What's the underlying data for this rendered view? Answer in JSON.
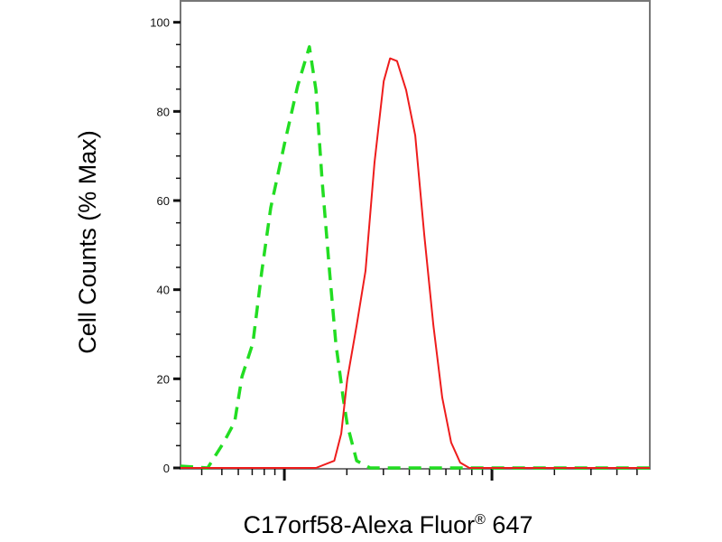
{
  "chart_data": {
    "type": "line",
    "title": "",
    "xlabel": "C17orf58-Alexa Fluor",
    "xlabel_superscript": "®",
    "xlabel_suffix": " 647",
    "ylabel": "Cell Counts (% Max)",
    "xscale": "log",
    "xlim": [
      31.6,
      5760
    ],
    "ylim": [
      0,
      105
    ],
    "yticks": [
      0,
      20,
      40,
      60,
      80,
      100
    ],
    "ytick_labels": [
      "0",
      "20",
      "40",
      "60",
      "80",
      "100"
    ],
    "x_major_ticks": [
      100,
      1000
    ],
    "grid": false,
    "series": [
      {
        "color": "#22dd22",
        "style": "dashed",
        "x": [
          31.6,
          42.7,
          51,
          57.6,
          62.5,
          70.5,
          77.8,
          86,
          100,
          116,
          132,
          142,
          152,
          165,
          177,
          192,
          201,
          223,
          259,
          5760
        ],
        "y": [
          0.4,
          0,
          5.7,
          10.3,
          20.5,
          28,
          44,
          58.4,
          72.6,
          85.8,
          94.5,
          84.8,
          64.5,
          44.2,
          28,
          15.8,
          9.7,
          1.6,
          0,
          0
        ]
      },
      {
        "color": "#ee1c1c",
        "style": "solid",
        "x": [
          31.6,
          142,
          174,
          188,
          201,
          223,
          246,
          272,
          301,
          323,
          349,
          386,
          427,
          472,
          522,
          576,
          636,
          703,
          778,
          5760
        ],
        "y": [
          0,
          0,
          1.6,
          7.7,
          19.9,
          32,
          44.2,
          68.6,
          86.8,
          91.9,
          91.3,
          84.8,
          74.6,
          52.3,
          32,
          15.8,
          5.7,
          1.2,
          0,
          0
        ]
      }
    ]
  }
}
